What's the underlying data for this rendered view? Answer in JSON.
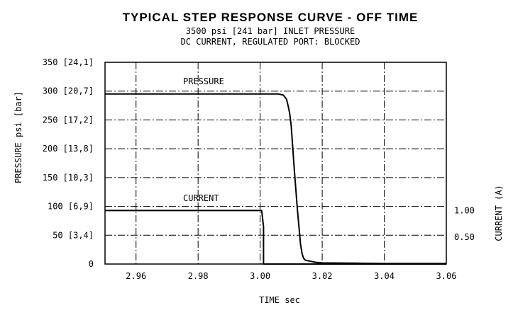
{
  "chart_data": {
    "type": "line",
    "title": "TYPICAL STEP RESPONSE CURVE - OFF TIME",
    "subtitle": [
      "3500 psi [241 bar] INLET PRESSURE",
      "DC CURRENT, REGULATED PORT: BLOCKED"
    ],
    "xlabel": "TIME sec",
    "ylabel": "PRESSURE psi [bar]",
    "y2label": "CURRENT (A)",
    "xlim": [
      2.95,
      3.06
    ],
    "ylim": [
      0,
      350
    ],
    "y2lim": [
      0,
      3.77
    ],
    "grid": true,
    "x_ticks": [
      2.96,
      2.98,
      3.0,
      3.02,
      3.04,
      3.06
    ],
    "x_tick_labels": [
      "2.96",
      "2.98",
      "3.00",
      "3.02",
      "3.04",
      "3.06"
    ],
    "y_ticks": [
      0,
      50,
      100,
      150,
      200,
      250,
      300,
      350
    ],
    "y_tick_labels": [
      "0",
      "50 [3,4]",
      "100 [6,9]",
      "150 [10,3]",
      "200 [13,8]",
      "250 [17,2]",
      "300 [20,7]",
      "350 [24,1]"
    ],
    "y2_ticks": [
      0.5,
      1.0
    ],
    "y2_tick_labels": [
      "0.50",
      "1.00"
    ],
    "series": [
      {
        "name": "PRESSURE",
        "axis": "left",
        "x": [
          2.95,
          3.0,
          3.006,
          3.0075,
          3.0085,
          3.009,
          3.0095,
          3.01,
          3.011,
          3.012,
          3.013,
          3.0135,
          3.014,
          3.0145,
          3.015,
          3.016,
          3.018,
          3.02,
          3.03,
          3.04,
          3.05,
          3.06
        ],
        "y": [
          295,
          295,
          295,
          293,
          286,
          275,
          262,
          240,
          165,
          95,
          35,
          18,
          10,
          7,
          6,
          5,
          3,
          2,
          1.5,
          1,
          1,
          1
        ]
      },
      {
        "name": "CURRENT",
        "axis": "right",
        "x": [
          2.95,
          3.0005,
          3.0011,
          3.0011,
          3.06
        ],
        "y": [
          1.0,
          1.0,
          0.7,
          0,
          0
        ]
      }
    ]
  }
}
